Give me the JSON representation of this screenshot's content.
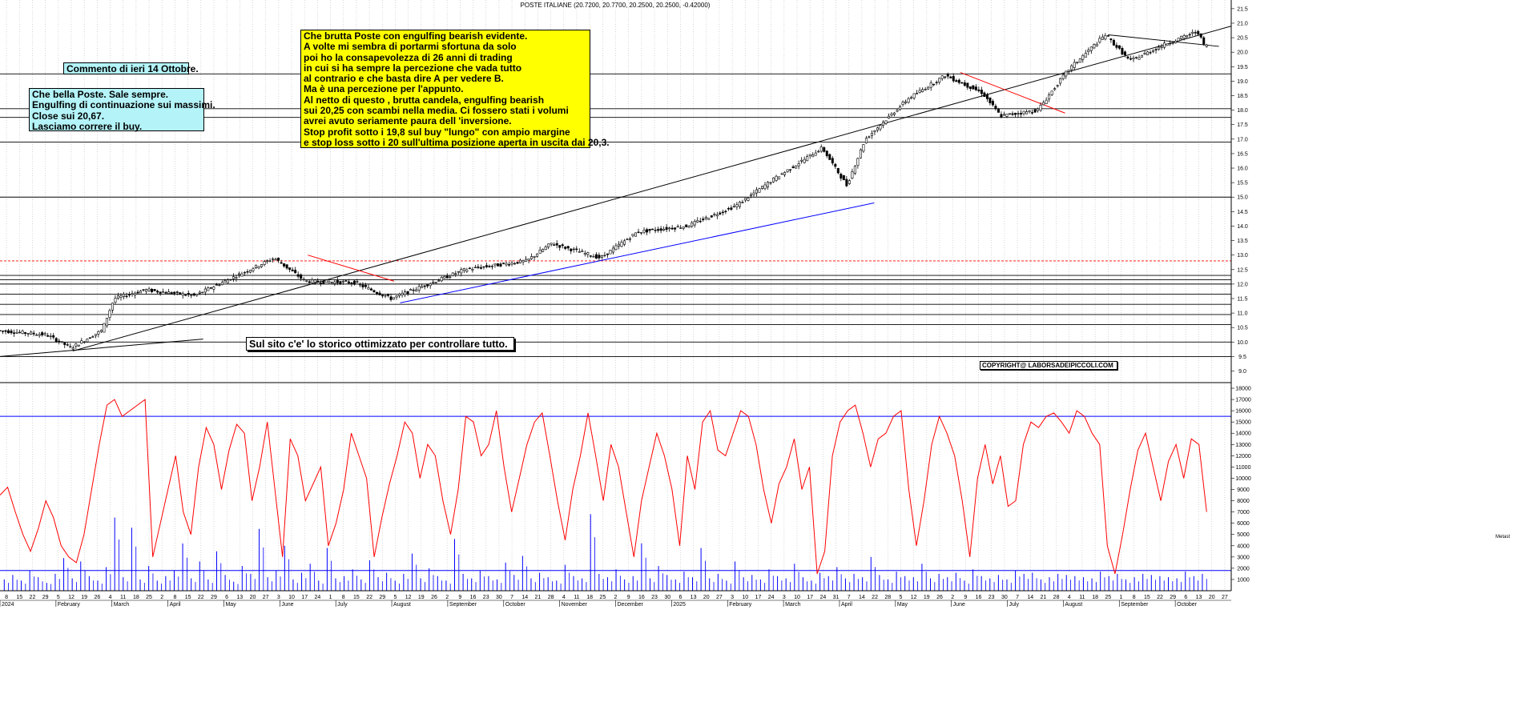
{
  "chart_data": [
    {
      "type": "candlestick",
      "title": "POSTE ITALIANE (20.7200, 20.7700, 20.2500, 20.2500, -0.42000)",
      "ylim": [
        8.6,
        21.8
      ],
      "y_ticks": [
        "9.0",
        "9.5",
        "10.0",
        "10.5",
        "11.0",
        "11.5",
        "12.0",
        "12.5",
        "13.0",
        "13.5",
        "14.0",
        "14.5",
        "15.0",
        "15.5",
        "16.0",
        "16.5",
        "17.0",
        "17.5",
        "18.0",
        "18.5",
        "19.0",
        "19.5",
        "20.0",
        "20.5",
        "21.0",
        "21.5"
      ],
      "grid": true,
      "price_path": [
        [
          0,
          10.4
        ],
        [
          0.04,
          10.25
        ],
        [
          0.06,
          9.8
        ],
        [
          0.085,
          10.4
        ],
        [
          0.095,
          11.5
        ],
        [
          0.12,
          11.8
        ],
        [
          0.16,
          11.6
        ],
        [
          0.2,
          12.4
        ],
        [
          0.225,
          12.9
        ],
        [
          0.25,
          12.1
        ],
        [
          0.29,
          12.05
        ],
        [
          0.32,
          11.5
        ],
        [
          0.38,
          12.5
        ],
        [
          0.43,
          12.8
        ],
        [
          0.45,
          13.4
        ],
        [
          0.49,
          12.9
        ],
        [
          0.52,
          13.8
        ],
        [
          0.56,
          14.0
        ],
        [
          0.6,
          14.7
        ],
        [
          0.63,
          15.6
        ],
        [
          0.67,
          16.7
        ],
        [
          0.69,
          15.4
        ],
        [
          0.705,
          17.0
        ],
        [
          0.74,
          18.4
        ],
        [
          0.77,
          19.2
        ],
        [
          0.8,
          18.6
        ],
        [
          0.815,
          17.8
        ],
        [
          0.845,
          18.0
        ],
        [
          0.87,
          19.4
        ],
        [
          0.9,
          20.6
        ],
        [
          0.92,
          19.7
        ],
        [
          0.95,
          20.3
        ],
        [
          0.975,
          20.72
        ],
        [
          0.98,
          20.25
        ]
      ],
      "support_lines": [
        9.5,
        10.0,
        10.6,
        10.95,
        11.3,
        11.65,
        12.0,
        12.15,
        12.3,
        15.0,
        16.9,
        17.75,
        18.05,
        19.25
      ],
      "trend_lines": [
        {
          "from": [
            0.0,
            9.5
          ],
          "to": [
            0.165,
            10.1
          ],
          "color": "#000000"
        },
        {
          "from": [
            0.06,
            9.7
          ],
          "to": [
            1.0,
            20.9
          ],
          "color": "#000000"
        },
        {
          "from": [
            0.325,
            11.35
          ],
          "to": [
            0.71,
            14.8
          ],
          "color": "#0000ff"
        },
        {
          "from": [
            0.25,
            13.0
          ],
          "to": [
            0.32,
            12.1
          ],
          "color": "#ff0000"
        },
        {
          "from": [
            0.78,
            19.3
          ],
          "to": [
            0.865,
            17.9
          ],
          "color": "#ff0000"
        },
        {
          "from": [
            0.9,
            20.6
          ],
          "to": [
            0.99,
            20.2
          ],
          "color": "#000000"
        }
      ],
      "resistance_dashed": 12.8
    },
    {
      "type": "line",
      "ylim": [
        0,
        18500
      ],
      "y_ticks": [
        "1000",
        "2000",
        "3000",
        "4000",
        "5000",
        "6000",
        "7000",
        "8000",
        "9000",
        "10000",
        "11000",
        "12000",
        "13000",
        "14000",
        "15000",
        "16000",
        "17000",
        "18000"
      ],
      "series": [
        {
          "values": [
            8500,
            9200,
            7000,
            5000,
            3500,
            5500,
            8000,
            6500,
            4000,
            3000,
            2500,
            5000,
            9000,
            13000,
            16500,
            17000,
            15500,
            16000,
            16500,
            17000,
            3000,
            6000,
            9000,
            12000,
            7000,
            5000,
            11000,
            14500,
            13000,
            9000,
            12500,
            14800,
            14000,
            8000,
            11000,
            15000,
            9000,
            3000,
            13500,
            12000,
            8000,
            9500,
            11000,
            4000,
            6000,
            9000,
            14000,
            12000,
            10000,
            3000,
            6500,
            9500,
            12000,
            15000,
            14000,
            10000,
            13000,
            12000,
            8000,
            5000,
            9000,
            15500,
            15000,
            12000,
            13000,
            16000,
            11000,
            7000,
            10000,
            13000,
            15000,
            15800,
            12000,
            8000,
            4500,
            9000,
            12000,
            15800,
            12000,
            8000,
            13000,
            11000,
            7000,
            3000,
            8000,
            11000,
            14000,
            12000,
            9000,
            4000,
            12000,
            9000,
            15000,
            16000,
            12500,
            12000,
            14000,
            16000,
            15500,
            13000,
            9000,
            6000,
            9500,
            11000,
            13500,
            9000,
            11000,
            1500,
            3500,
            12000,
            15000,
            16000,
            16500,
            14000,
            11000,
            13500,
            14000,
            15500,
            16000,
            9000,
            4000,
            8000,
            13000,
            15500,
            14000,
            12000,
            8000,
            3000,
            10000,
            13000,
            9500,
            12000,
            7500,
            8000,
            13000,
            15000,
            14500,
            15500,
            15800,
            15000,
            14000,
            16000,
            15500,
            14000,
            13000,
            4000,
            1500,
            5000,
            9000,
            12500,
            14000,
            11000,
            8000,
            11500,
            13000,
            10000,
            13500,
            13000,
            7000
          ]
        },
        {
          "name": "",
          "values": [
            1000,
            1400,
            900,
            1800,
            1200,
            700,
            1500,
            2900,
            1100,
            2600,
            1300,
            900,
            2100,
            6500,
            1200,
            5600,
            1000,
            2200,
            900,
            1300,
            1800,
            4200,
            1100,
            2600,
            1000,
            3500,
            1400,
            800,
            2200,
            1500,
            5500,
            1200,
            1800,
            4000,
            1000,
            1600,
            2400,
            900,
            3800,
            1100,
            1300,
            1900,
            1000,
            2700,
            1200,
            1600,
            900,
            1500,
            3300,
            1100,
            2000,
            1300,
            900,
            4600,
            1500,
            1100,
            1800,
            1300,
            1000,
            2500,
            1400,
            3100,
            1100,
            1600,
            1200,
            900,
            2300,
            1300,
            1100,
            6800,
            1500,
            1200,
            1900,
            1000,
            1300,
            4200,
            1100,
            2200,
            1400,
            1000,
            1700,
            1200,
            3800,
            1100,
            1500,
            900,
            2600,
            1200,
            1400,
            1000,
            1900,
            1300,
            1100,
            2400,
            1200,
            900,
            1600,
            1300,
            2100,
            1100,
            1500,
            1200,
            3000,
            1400,
            1000,
            1700,
            1300,
            1200,
            2400,
            1100,
            1500,
            1200,
            1600,
            900,
            1900,
            1300,
            1100,
            1400,
            1000,
            1800,
            1500,
            1600,
            1000,
            1200,
            1500,
            1400,
            1300,
            1200,
            1100,
            1700,
            1300,
            1500,
            1000,
            1200,
            1500,
            1400,
            1300,
            1200,
            1100,
            1700,
            1300,
            1500
          ]
        }
      ],
      "hline": 15500,
      "baseline": 1800
    }
  ],
  "x_axis": {
    "days_row": [
      "8",
      "15",
      "22",
      "29",
      "5",
      "12",
      "19",
      "26",
      "4",
      "11",
      "18",
      "25",
      "2",
      "8",
      "15",
      "22",
      "29",
      "6",
      "13",
      "20",
      "27",
      "3",
      "10",
      "17",
      "24",
      "1",
      "8",
      "15",
      "22",
      "29",
      "5",
      "12",
      "19",
      "26",
      "2",
      "9",
      "16",
      "23",
      "30",
      "7",
      "14",
      "21",
      "28",
      "4",
      "11",
      "18",
      "25",
      "2",
      "9",
      "16",
      "23",
      "30",
      "6",
      "13",
      "20",
      "27",
      "3",
      "10",
      "17",
      "24",
      "3",
      "10",
      "17",
      "24",
      "31",
      "7",
      "14",
      "22",
      "28",
      "5",
      "12",
      "19",
      "26",
      "2",
      "9",
      "16",
      "23",
      "30",
      "7",
      "14",
      "21",
      "28",
      "4",
      "11",
      "18",
      "25",
      "1",
      "8",
      "15",
      "22",
      "29",
      "6",
      "13",
      "20",
      "27"
    ],
    "month_labels": [
      "2024",
      "February",
      "March",
      "April",
      "May",
      "June",
      "July",
      "August",
      "September",
      "October",
      "November",
      "December",
      "2025",
      "February",
      "March",
      "April",
      "May",
      "June",
      "July",
      "August",
      "September",
      "October"
    ]
  },
  "annotations": {
    "comment_header": "Commento di ieri 14 Ottobre.",
    "left_note_lines": [
      "Che bella Poste. Sale sempre.",
      "Engulfing di continuazione sui massimi.",
      "Close sui 20,67.",
      "Lasciamo correre il buy."
    ],
    "main_note_lines": [
      "Che brutta Poste con engulfing bearish evidente.",
      "A volte mi sembra di portarmi sfortuna da solo",
      "poi ho la consapevolezza di 26 anni di trading",
      "in cui si ha sempre la percezione che vada tutto",
      "al contrario e che basta dire A per vedere B.",
      "Ma è una percezione per l'appunto.",
      "Al netto di questo , brutta candela, engulfing bearish",
      "sui 20,25 con scambi nella media. Ci fossero stati i volumi",
      "avrei avuto seriamente paura dell 'inversione.",
      "Stop profit sotto i 19,8 sul buy \"lungo\" con ampio margine",
      "e stop loss sotto i 20 sull'ultima posizione aperta in uscita dai 20,3."
    ],
    "site_note": "Sul sito c'e' lo storico ottimizzato per controllare tutto.",
    "copyright": "COPYRIGHT@ LABORSADEIPICCOLI.COM",
    "corner_tag": "Metast"
  },
  "colors": {
    "candle": "#000000",
    "trend_blue": "#0000ff",
    "trend_red": "#ff0000",
    "oscillator": "#ff0000",
    "volume": "#0000ff",
    "note_yellow": "#ffff00",
    "note_cyan": "#b4f4f8",
    "grid": "#bdbdbd"
  }
}
